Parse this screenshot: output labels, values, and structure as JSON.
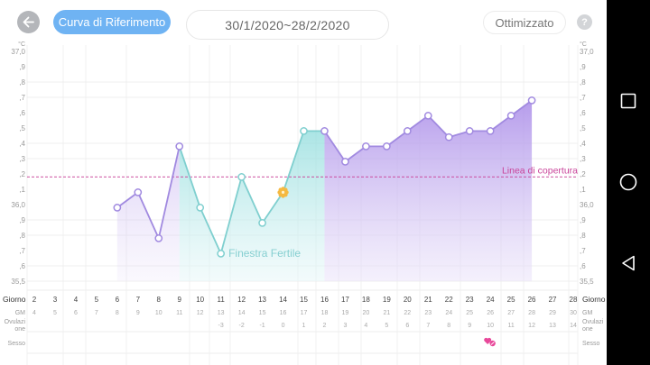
{
  "header": {
    "back_icon": "arrow-left-icon",
    "reference_button": "Curva di Riferimento",
    "date_range": "30/1/2020~28/2/2020",
    "optimized_button": "Ottimizzato",
    "help_icon": "question-mark-icon",
    "help_label": "?"
  },
  "navbar": {
    "recent_icon": "square-icon",
    "home_icon": "circle-icon",
    "back_icon": "triangle-back-icon"
  },
  "colors": {
    "accent_blue": "#6fb3f3",
    "luteal_purple": "#a88fe3",
    "fertile_teal": "#86d6d8",
    "coverline_pink": "#c9449a",
    "ovulation_orange": "#f5b941",
    "heart_pink": "#e8489a"
  },
  "chart_data": {
    "type": "line",
    "title": "",
    "xlabel": "Giorno",
    "ylabel": "°C",
    "y_unit": "°C",
    "ylim": [
      35.5,
      37.0
    ],
    "y_ticks_left": [
      "37,0",
      ",9",
      ",8",
      ",7",
      ",6",
      ",5",
      ",4",
      ",3",
      ",2",
      ",1",
      "36,0",
      ",9",
      ",8",
      ",7",
      ",6",
      "35,5"
    ],
    "y_ticks_right": [
      "37,0",
      ",9",
      ",8",
      ",7",
      ",6",
      ",5",
      ",4",
      ",3",
      ",2",
      ",1",
      "36,0",
      ",9",
      ",8",
      ",7",
      ",6",
      "35,5"
    ],
    "grid": true,
    "x": [
      6,
      7,
      8,
      9,
      10,
      11,
      12,
      13,
      14,
      15,
      16,
      17,
      18,
      19,
      20,
      21,
      22,
      23,
      24,
      25,
      26
    ],
    "values": [
      35.98,
      36.08,
      35.78,
      36.38,
      35.98,
      35.68,
      36.18,
      35.88,
      36.08,
      36.48,
      36.48,
      36.28,
      36.38,
      36.38,
      36.48,
      36.58,
      36.44,
      36.48,
      36.48,
      36.58,
      36.68
    ],
    "coverline": {
      "value": 36.18,
      "label": "Linea di copertura"
    },
    "fertile_window": {
      "start_day": 9,
      "end_day": 16,
      "label": "Finestra Fertile"
    },
    "ovulation_day": 14,
    "intercourse_days": [
      24
    ],
    "rows": {
      "giorno_label": "Giorno",
      "giorno": [
        2,
        3,
        4,
        5,
        6,
        7,
        8,
        9,
        10,
        11,
        12,
        13,
        14,
        15,
        16,
        17,
        18,
        19,
        20,
        21,
        22,
        23,
        24,
        25,
        26,
        27,
        28
      ],
      "gm_label": "GM",
      "gm": [
        4,
        5,
        6,
        7,
        8,
        9,
        10,
        11,
        12,
        13,
        14,
        15,
        16,
        17,
        18,
        19,
        20,
        21,
        22,
        23,
        24,
        25,
        26,
        27,
        28,
        29,
        30
      ],
      "ovulazione_label": "Ovulazione",
      "ovulazione_label_line1": "Ovulazi",
      "ovulazione_label_line2": "one",
      "ovulazione": [
        "",
        "",
        "",
        "",
        "",
        "",
        "",
        "",
        "",
        -3,
        -2,
        -1,
        0,
        1,
        2,
        3,
        4,
        5,
        6,
        7,
        8,
        9,
        10,
        11,
        12,
        13,
        14
      ],
      "sesso_label": "Sesso"
    }
  }
}
